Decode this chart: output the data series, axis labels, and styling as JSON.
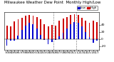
{
  "title": "Milwaukee Weather Dew Point",
  "subtitle": "Monthly High/Low",
  "background_color": "#ffffff",
  "bar_color_high": "#cc0000",
  "bar_color_low": "#0000cc",
  "dashed_line_color": "#888888",
  "ylabel_right_values": [
    40,
    20,
    0,
    -20
  ],
  "num_groups": 25,
  "high_values": [
    38,
    35,
    50,
    55,
    60,
    65,
    68,
    65,
    62,
    55,
    42,
    35,
    40,
    38,
    52,
    58,
    62,
    68,
    70,
    68,
    60,
    52,
    45,
    52,
    48
  ],
  "low_values": [
    -18,
    -5,
    -5,
    10,
    25,
    38,
    45,
    42,
    30,
    12,
    -2,
    -15,
    -8,
    -2,
    8,
    18,
    30,
    42,
    48,
    45,
    35,
    20,
    5,
    -10,
    -5
  ],
  "x_tick_labels": [
    "'93",
    "'94",
    "'95",
    "'96",
    "'97",
    "'98",
    "'99",
    "'00",
    "'01",
    "'02",
    "'03",
    "'04",
    "'05",
    "'06",
    "'07",
    "'08",
    "'09",
    "'10",
    "'11",
    "'12",
    "'13",
    "'14",
    "'15",
    "'16",
    "'17"
  ],
  "tick_fontsize": 3.2,
  "title_fontsize": 4.0,
  "legend_high_label": "High",
  "legend_low_label": "Low",
  "dashed_lines_at": [
    12.5,
    18.5
  ],
  "ylim": [
    -30,
    75
  ],
  "bar_width": 0.35,
  "bar_gap": 0.02
}
